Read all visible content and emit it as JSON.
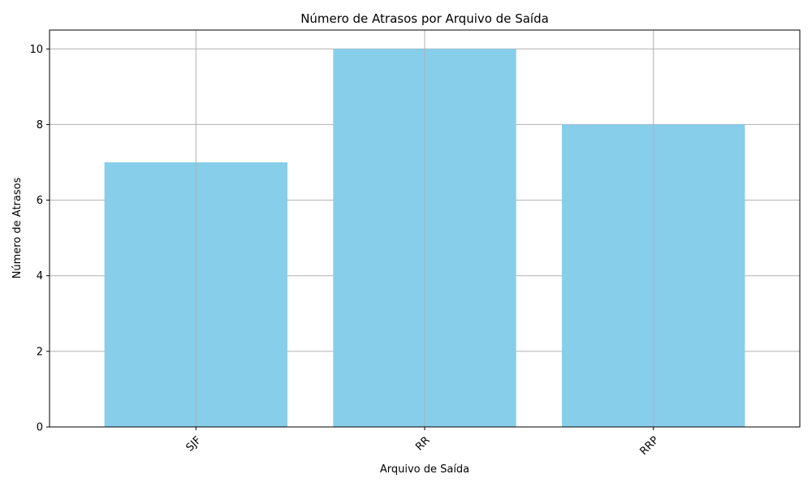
{
  "chart_data": {
    "type": "bar",
    "title": "Número de Atrasos por Arquivo de Saída",
    "xlabel": "Arquivo de Saída",
    "ylabel": "Número de Atrasos",
    "categories": [
      "SJF",
      "RR",
      "RRP"
    ],
    "values": [
      7,
      10,
      8
    ],
    "ylim": [
      0,
      10.5
    ],
    "yticks": [
      0,
      2,
      4,
      6,
      8,
      10
    ],
    "grid": true,
    "bar_color": "#87ceeb",
    "xtick_rotation": 45
  }
}
